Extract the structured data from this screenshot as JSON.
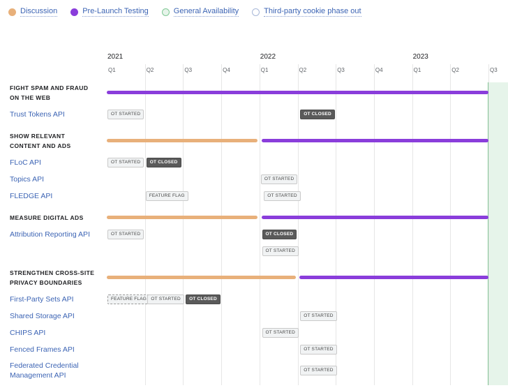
{
  "legend": [
    {
      "label": "Discussion",
      "color": "#e8b07a",
      "fill": true
    },
    {
      "label": "Pre-Launch Testing",
      "color": "#8a3ddb",
      "fill": true
    },
    {
      "label": "General Availability",
      "color": "#81c995",
      "fill": false,
      "bg": "#e6f4ea"
    },
    {
      "label": "Third-party cookie phase out",
      "color": "#a8b8d8",
      "fill": false,
      "bg": "#ffffff"
    }
  ],
  "chart_data": {
    "type": "timeline",
    "years": [
      "2021",
      "2022",
      "2023"
    ],
    "quarters": [
      "Q1",
      "Q2",
      "Q3",
      "Q4",
      "Q1",
      "Q2",
      "Q3",
      "Q4",
      "Q1",
      "Q2",
      "Q3"
    ],
    "general_availability_start": 10.0,
    "categories": [
      {
        "title": "FIGHT SPAM AND FRAUD ON THE WEB",
        "phases": [
          {
            "type": "Pre-Launch Testing",
            "start": 0.0,
            "end": 10.0
          }
        ],
        "apis": [
          {
            "name": "Trust Tokens API",
            "markers": [
              {
                "label": "OT STARTED",
                "at": 0.0,
                "style": "light"
              },
              {
                "label": "OT CLOSED",
                "at": 5.05,
                "style": "dark"
              }
            ]
          }
        ]
      },
      {
        "title": "SHOW RELEVANT CONTENT AND ADS",
        "phases": [
          {
            "type": "Discussion",
            "start": 0.0,
            "end": 3.95
          },
          {
            "type": "Pre-Launch Testing",
            "start": 4.05,
            "end": 10.0
          }
        ],
        "apis": [
          {
            "name": "FLoC API",
            "markers": [
              {
                "label": "OT STARTED",
                "at": 0.0,
                "style": "light"
              },
              {
                "label": "OT CLOSED",
                "at": 1.02,
                "style": "dark"
              }
            ]
          },
          {
            "name": "Topics API",
            "markers": [
              {
                "label": "OT STARTED",
                "at": 4.02,
                "style": "light"
              }
            ]
          },
          {
            "name": "FLEDGE API",
            "markers": [
              {
                "label": "FEATURE FLAG",
                "at": 1.0,
                "style": "light"
              },
              {
                "label": "OT STARTED",
                "at": 4.1,
                "style": "light"
              }
            ]
          }
        ]
      },
      {
        "title": "MEASURE DIGITAL ADS",
        "phases": [
          {
            "type": "Discussion",
            "start": 0.0,
            "end": 3.95
          },
          {
            "type": "Pre-Launch Testing",
            "start": 4.05,
            "end": 10.0
          }
        ],
        "apis": [
          {
            "name": "Attribution Reporting API",
            "markers": [
              {
                "label": "OT STARTED",
                "at": 0.0,
                "style": "light"
              },
              {
                "label": "OT CLOSED",
                "at": 4.05,
                "style": "dark"
              }
            ]
          },
          {
            "name": "",
            "markers": [
              {
                "label": "OT STARTED",
                "at": 4.05,
                "style": "light"
              }
            ]
          }
        ]
      },
      {
        "title": "STRENGTHEN CROSS-SITE PRIVACY BOUNDARIES",
        "phases": [
          {
            "type": "Discussion",
            "start": 0.0,
            "end": 4.95
          },
          {
            "type": "Pre-Launch Testing",
            "start": 5.05,
            "end": 10.0
          }
        ],
        "apis": [
          {
            "name": "First-Party Sets API",
            "markers": [
              {
                "label": "FEATURE FLAG",
                "at": 0.0,
                "style": "dashed"
              },
              {
                "label": "OT STARTED",
                "at": 1.05,
                "style": "light"
              },
              {
                "label": "OT CLOSED",
                "at": 2.05,
                "style": "dark"
              }
            ]
          },
          {
            "name": "Shared Storage API",
            "markers": [
              {
                "label": "OT STARTED",
                "at": 5.05,
                "style": "light"
              }
            ]
          },
          {
            "name": "CHIPS API",
            "markers": [
              {
                "label": "OT STARTED",
                "at": 4.05,
                "style": "light"
              }
            ]
          },
          {
            "name": "Fenced Frames API",
            "markers": [
              {
                "label": "OT STARTED",
                "at": 5.05,
                "style": "light"
              }
            ]
          },
          {
            "name": "Federated Credential Management API",
            "markers": [
              {
                "label": "OT STARTED",
                "at": 5.05,
                "style": "light"
              }
            ]
          }
        ]
      }
    ]
  }
}
